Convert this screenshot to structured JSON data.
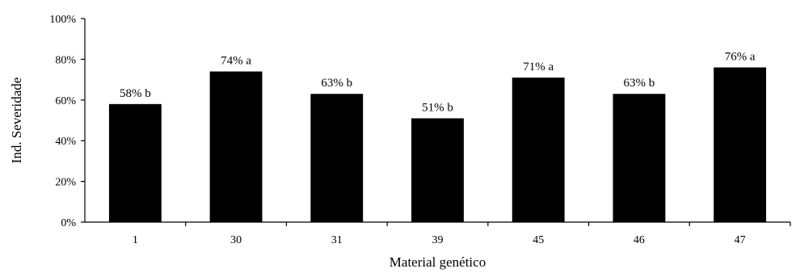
{
  "chart_data": {
    "type": "bar",
    "categories": [
      "1",
      "30",
      "31",
      "39",
      "45",
      "46",
      "47"
    ],
    "values": [
      58,
      74,
      63,
      51,
      71,
      63,
      76
    ],
    "data_labels": [
      "58% b",
      "74% a",
      "63% b",
      "51% b",
      "71% a",
      "63% b",
      "76% a"
    ],
    "ylim": [
      0,
      100
    ],
    "yticks": [
      0,
      20,
      40,
      60,
      80,
      100
    ],
    "ytick_labels": [
      "0%",
      "20%",
      "40%",
      "60%",
      "80%",
      "100%"
    ],
    "xlabel": "Material genético",
    "ylabel": "Ind. Severidade",
    "grid": false,
    "legend": "none",
    "bar_color": "#000000",
    "axis_color": "#000000"
  }
}
